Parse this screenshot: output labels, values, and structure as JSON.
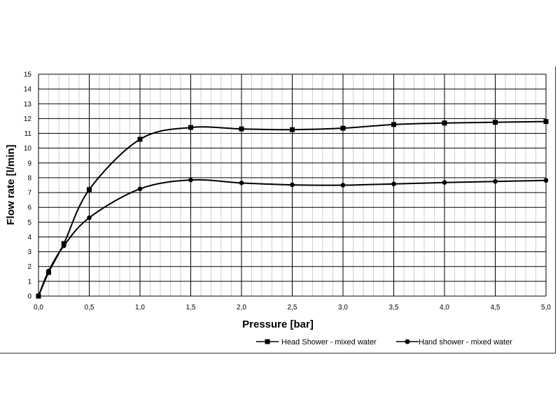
{
  "chart_data": {
    "type": "line",
    "title": "",
    "xlabel": "Pressure [bar]",
    "ylabel": "Flow rate [l/min]",
    "xlim": [
      0,
      5
    ],
    "ylim": [
      0,
      15
    ],
    "grid": true,
    "legend_position": "bottom",
    "x_ticks": [
      "0,0",
      "0,5",
      "1,0",
      "1,5",
      "2,0",
      "2,5",
      "3,0",
      "3,5",
      "4,0",
      "4,5",
      "5,0"
    ],
    "y_ticks": [
      "0",
      "1",
      "2",
      "3",
      "4",
      "5",
      "6",
      "7",
      "8",
      "9",
      "10",
      "11",
      "12",
      "13",
      "14",
      "15"
    ],
    "series": [
      {
        "name": "Head Shower - mixed water",
        "marker": "square",
        "color": "#000000",
        "x": [
          0,
          0.1,
          0.25,
          0.5,
          1.0,
          1.5,
          2.0,
          2.5,
          3.0,
          3.5,
          4.0,
          4.5,
          5.0
        ],
        "values": [
          0,
          1.6,
          3.55,
          7.2,
          10.6,
          11.4,
          11.3,
          11.25,
          11.35,
          11.6,
          11.7,
          11.75,
          11.8
        ]
      },
      {
        "name": "Hand shower - mixed water",
        "marker": "circle",
        "color": "#000000",
        "x": [
          0,
          0.1,
          0.25,
          0.5,
          1.0,
          1.5,
          2.0,
          2.5,
          3.0,
          3.5,
          4.0,
          4.5,
          5.0
        ],
        "values": [
          0,
          1.7,
          3.4,
          5.3,
          7.25,
          7.85,
          7.65,
          7.52,
          7.5,
          7.58,
          7.68,
          7.75,
          7.82
        ]
      }
    ]
  }
}
